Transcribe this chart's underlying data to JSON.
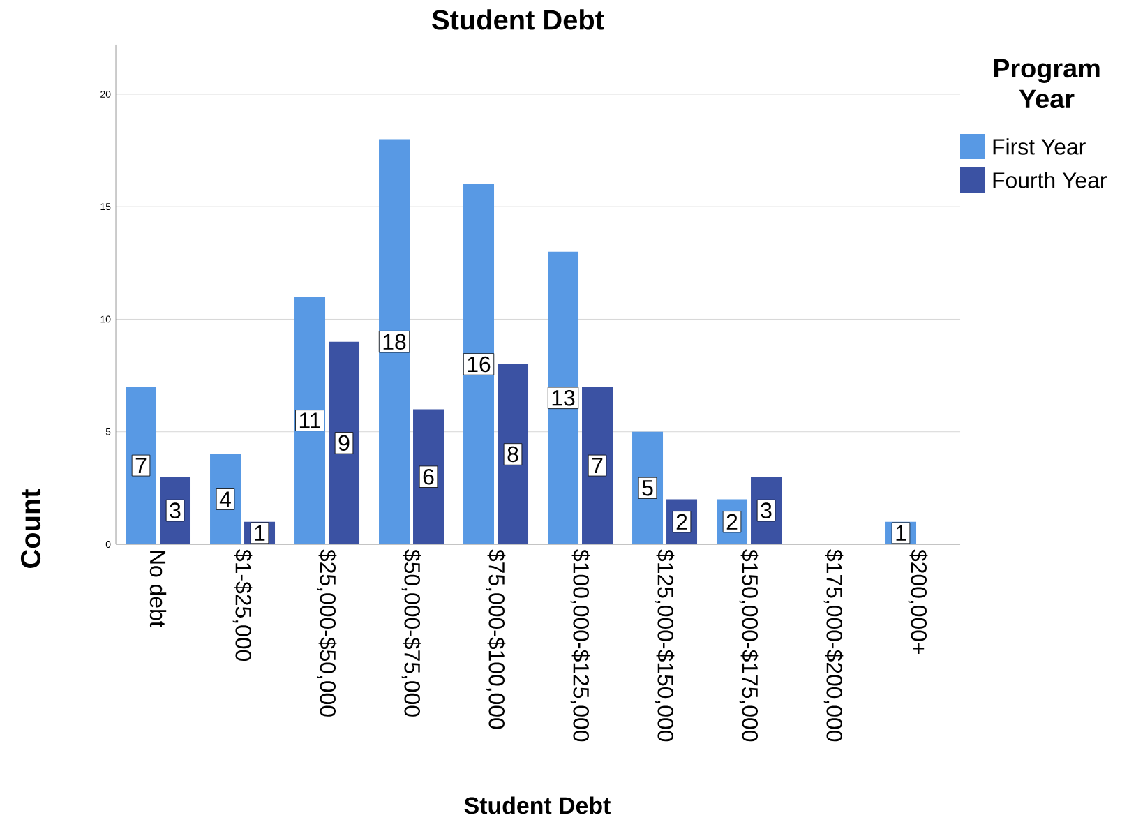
{
  "chart_data": {
    "type": "bar",
    "title": "Student Debt",
    "xlabel": "Student Debt",
    "ylabel": "Count",
    "legend_title": "Program Year",
    "categories": [
      "No debt",
      "$1-$25,000",
      "$25,000-$50,000",
      "$50,000-$75,000",
      "$75,000-$100,000",
      "$100,000-$125,000",
      "$125,000-$150,000",
      "$150,000-$175,000",
      "$175,000-$200,000",
      "$200,000+"
    ],
    "series": [
      {
        "name": "First Year",
        "color": "#5899e4",
        "values": [
          7,
          4,
          11,
          18,
          16,
          13,
          5,
          2,
          null,
          1
        ]
      },
      {
        "name": "Fourth Year",
        "color": "#3b52a3",
        "values": [
          3,
          1,
          9,
          6,
          8,
          7,
          2,
          3,
          null,
          null
        ]
      }
    ],
    "ylim": [
      0,
      22.2
    ],
    "yticks": [
      0,
      5,
      10,
      15,
      20
    ],
    "grid": "y",
    "legend": "top right",
    "data_labels": true
  }
}
